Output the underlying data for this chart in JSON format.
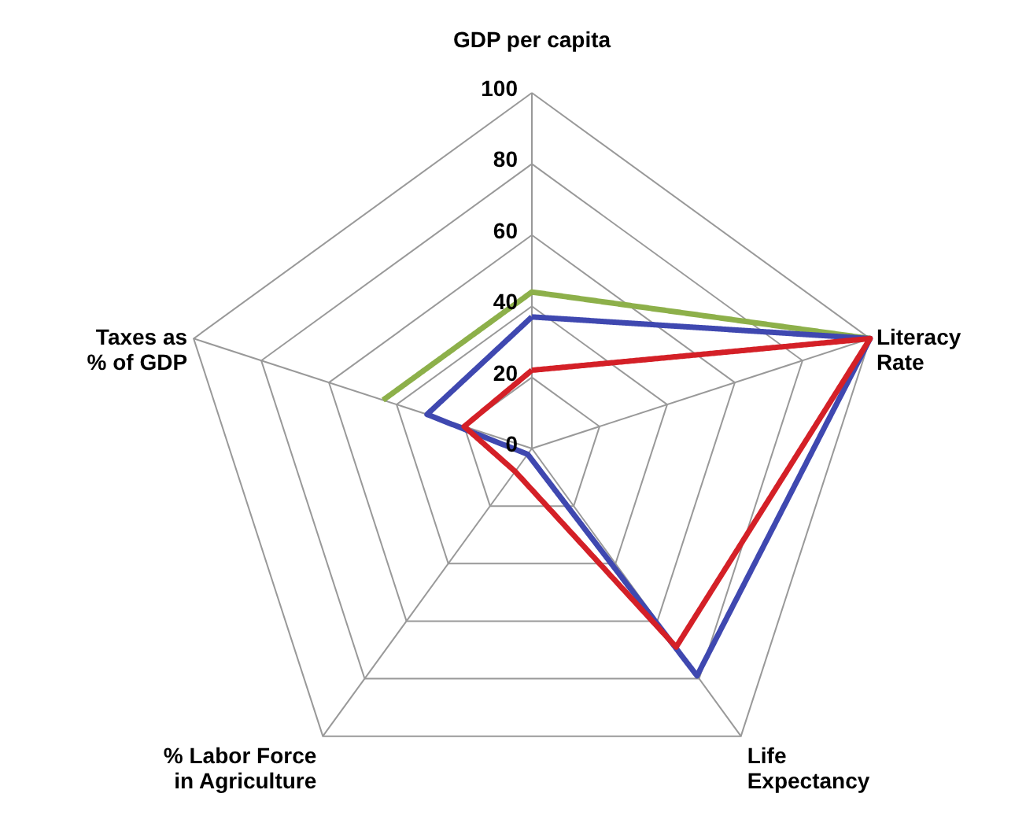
{
  "chart_data": {
    "type": "radar",
    "categories": [
      "GDP per capita",
      "Literacy\nRate",
      "Life\nExpectancy",
      "% Labor Force\nin Agriculture",
      "Taxes as\n% of GDP"
    ],
    "ylim": [
      0,
      100
    ],
    "yticks": [
      0,
      20,
      40,
      60,
      80,
      100
    ],
    "series": [
      {
        "color": "#8db04a",
        "values": [
          44,
          100,
          null,
          null,
          44
        ]
      },
      {
        "color": "#3f48b0",
        "values": [
          37,
          100,
          79,
          2,
          31
        ]
      },
      {
        "color": "#d42027",
        "values": [
          22,
          100,
          69,
          8,
          20
        ]
      }
    ]
  }
}
